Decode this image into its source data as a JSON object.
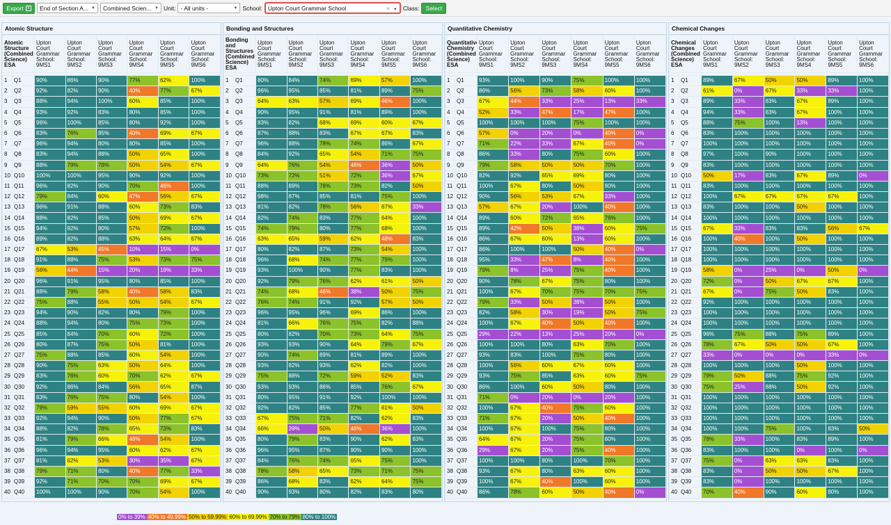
{
  "toolbar": {
    "export_label": "Export",
    "select1": "End of Section A...",
    "select2": "Combined Scien...",
    "unit_label": "Unit:",
    "unit_value": "- All units -",
    "school_label": "School:",
    "school_value": "Upton Court Grammar School",
    "class_label": "Class:",
    "select_button": "Select"
  },
  "colors": {
    "0-39": "#a44fd1",
    "40-49.99": "#f07828",
    "50-59.99": "#f2d200",
    "60-69.99": "#f7f20a",
    "70-79": "#8cc22a",
    "80-100": "#2e8283"
  },
  "legend": [
    "0% to 39%",
    "40% to 49.99%",
    "50% to 59.99%",
    "60% to 69.99%",
    "70% to 79%",
    "80% to 100%"
  ],
  "panels": [
    {
      "title": "Atomic Structure",
      "first_header": "Atomic Structure (Combined Science) ESA",
      "class_headers": [
        "Upton Court Grammar School: 9MS1",
        "Upton Court Grammar School: 9MS2",
        "Upton Court Grammar School: 9MS3",
        "Upton Court Grammar School: 9MS4",
        "Upton Court Grammar School: 9MS5",
        "Upton Court Grammar School: 9MS6"
      ],
      "rows": [
        [
          90,
          86,
          90,
          77,
          62,
          100
        ],
        [
          92,
          82,
          90,
          40,
          77,
          67
        ],
        [
          88,
          94,
          100,
          60,
          85,
          100
        ],
        [
          93,
          92,
          83,
          80,
          85,
          100
        ],
        [
          96,
          100,
          85,
          80,
          92,
          100
        ],
        [
          83,
          76,
          85,
          40,
          69,
          67
        ],
        [
          96,
          94,
          80,
          80,
          85,
          100
        ],
        [
          83,
          94,
          88,
          50,
          65,
          100
        ],
        [
          88,
          79,
          78,
          50,
          54,
          67
        ],
        [
          100,
          100,
          95,
          90,
          92,
          100
        ],
        [
          96,
          82,
          90,
          70,
          46,
          100
        ],
        [
          79,
          84,
          60,
          47,
          56,
          67
        ],
        [
          96,
          91,
          88,
          60,
          73,
          83
        ],
        [
          88,
          82,
          85,
          50,
          69,
          67
        ],
        [
          94,
          92,
          80,
          57,
          72,
          100
        ],
        [
          89,
          82,
          88,
          63,
          64,
          67
        ],
        [
          67,
          53,
          45,
          10,
          15,
          0
        ],
        [
          91,
          88,
          75,
          53,
          73,
          75
        ],
        [
          56,
          44,
          15,
          20,
          19,
          33
        ],
        [
          96,
          91,
          95,
          80,
          85,
          100
        ],
        [
          88,
          79,
          58,
          40,
          58,
          83
        ],
        [
          75,
          88,
          55,
          50,
          54,
          67
        ],
        [
          94,
          90,
          82,
          80,
          79,
          100
        ],
        [
          88,
          94,
          80,
          75,
          73,
          100
        ],
        [
          85,
          84,
          70,
          60,
          72,
          100
        ],
        [
          80,
          87,
          75,
          50,
          81,
          100
        ],
        [
          75,
          88,
          85,
          60,
          54,
          100
        ],
        [
          90,
          75,
          63,
          50,
          64,
          100
        ],
        [
          83,
          76,
          60,
          70,
          62,
          67
        ],
        [
          92,
          86,
          84,
          56,
          65,
          87
        ],
        [
          83,
          76,
          75,
          80,
          54,
          100
        ],
        [
          79,
          59,
          55,
          60,
          69,
          67
        ],
        [
          92,
          94,
          90,
          50,
          77,
          67
        ],
        [
          88,
          82,
          78,
          65,
          73,
          83
        ],
        [
          81,
          79,
          66,
          48,
          54,
          100
        ],
        [
          96,
          94,
          95,
          60,
          62,
          67
        ],
        [
          81,
          62,
          53,
          30,
          35,
          67
        ],
        [
          79,
          71,
          80,
          40,
          77,
          33
        ],
        [
          92,
          71,
          70,
          70,
          69,
          67
        ],
        [
          100,
          100,
          90,
          70,
          54,
          100
        ]
      ]
    },
    {
      "title": "Bonding and Structures",
      "first_header": "Bonding and Structures (Combined Science) ESA",
      "class_headers": [
        "Upton Court Grammar School: 9MS1",
        "Upton Court Grammar School: 9MS2",
        "Upton Court Grammar School: 9MS3",
        "Upton Court Grammar School: 9MS4",
        "Upton Court Grammar School: 9MS5",
        "Upton Court Grammar School: 9MS6"
      ],
      "rows": [
        [
          80,
          84,
          74,
          69,
          57,
          100
        ],
        [
          96,
          95,
          85,
          81,
          89,
          75
        ],
        [
          64,
          63,
          57,
          69,
          46,
          100
        ],
        [
          90,
          95,
          91,
          81,
          89,
          100
        ],
        [
          83,
          82,
          68,
          69,
          60,
          67
        ],
        [
          87,
          88,
          83,
          67,
          67,
          83
        ],
        [
          96,
          88,
          78,
          74,
          86,
          67
        ],
        [
          84,
          92,
          65,
          54,
          71,
          75
        ],
        [
          64,
          76,
          54,
          46,
          36,
          50
        ],
        [
          73,
          72,
          51,
          72,
          36,
          67
        ],
        [
          88,
          89,
          78,
          73,
          82,
          50
        ],
        [
          98,
          87,
          85,
          81,
          75,
          100
        ],
        [
          81,
          82,
          78,
          56,
          67,
          33
        ],
        [
          82,
          74,
          83,
          77,
          64,
          100
        ],
        [
          74,
          79,
          80,
          77,
          68,
          100
        ],
        [
          63,
          65,
          59,
          62,
          48,
          83
        ],
        [
          80,
          82,
          87,
          73,
          54,
          100
        ],
        [
          96,
          68,
          74,
          77,
          79,
          100
        ],
        [
          93,
          100,
          90,
          77,
          83,
          100
        ],
        [
          92,
          79,
          76,
          62,
          61,
          50
        ],
        [
          74,
          68,
          46,
          38,
          50,
          75
        ],
        [
          76,
          74,
          91,
          92,
          57,
          50
        ],
        [
          96,
          95,
          96,
          69,
          86,
          100
        ],
        [
          81,
          66,
          76,
          75,
          82,
          88
        ],
        [
          80,
          82,
          70,
          73,
          64,
          75
        ],
        [
          93,
          93,
          90,
          64,
          79,
          67
        ],
        [
          90,
          74,
          89,
          81,
          89,
          100
        ],
        [
          93,
          82,
          93,
          62,
          82,
          100
        ],
        [
          75,
          88,
          72,
          59,
          52,
          83
        ],
        [
          93,
          93,
          86,
          85,
          76,
          67
        ],
        [
          80,
          95,
          91,
          92,
          100,
          100
        ],
        [
          92,
          82,
          85,
          77,
          61,
          50
        ],
        [
          67,
          75,
          71,
          82,
          62,
          83
        ],
        [
          66,
          39,
          50,
          46,
          36,
          100
        ],
        [
          80,
          79,
          83,
          90,
          62,
          83
        ],
        [
          96,
          95,
          87,
          90,
          90,
          100
        ],
        [
          84,
          76,
          74,
          65,
          75,
          100
        ],
        [
          78,
          58,
          65,
          73,
          71,
          75
        ],
        [
          86,
          68,
          83,
          62,
          64,
          75
        ],
        [
          90,
          93,
          80,
          82,
          83,
          80
        ]
      ]
    },
    {
      "title": "Quantitative Chemistry",
      "first_header": "Quantitative Chemistry (Combined Science) ESA",
      "class_headers": [
        "Upton Court Grammar School: 9MS1",
        "Upton Court Grammar School: 9MS2",
        "Upton Court Grammar School: 9MS3",
        "Upton Court Grammar School: 9MS4",
        "Upton Court Grammar School: 9MS5",
        "Upton Court Grammar School: 9MS6"
      ],
      "rows": [
        [
          93,
          100,
          90,
          75,
          100,
          100
        ],
        [
          86,
          56,
          73,
          58,
          60,
          100
        ],
        [
          67,
          44,
          33,
          25,
          13,
          33
        ],
        [
          52,
          33,
          47,
          17,
          47,
          100
        ],
        [
          100,
          100,
          100,
          75,
          100,
          100
        ],
        [
          57,
          0,
          20,
          0,
          40,
          0
        ],
        [
          71,
          22,
          33,
          67,
          40,
          0
        ],
        [
          86,
          33,
          80,
          75,
          60,
          100
        ],
        [
          79,
          58,
          50,
          50,
          70,
          100
        ],
        [
          82,
          92,
          65,
          69,
          80,
          100
        ],
        [
          100,
          67,
          80,
          50,
          80,
          100
        ],
        [
          90,
          56,
          53,
          67,
          33,
          100
        ],
        [
          57,
          67,
          20,
          100,
          40,
          100
        ],
        [
          89,
          60,
          72,
          65,
          76,
          100
        ],
        [
          89,
          42,
          50,
          38,
          60,
          75
        ],
        [
          86,
          67,
          60,
          13,
          60,
          100
        ],
        [
          86,
          100,
          100,
          50,
          40,
          0
        ],
        [
          95,
          33,
          47,
          8,
          40,
          100
        ],
        [
          79,
          8,
          25,
          75,
          40,
          100
        ],
        [
          90,
          78,
          67,
          75,
          80,
          100
        ],
        [
          100,
          67,
          70,
          75,
          70,
          75
        ],
        [
          79,
          33,
          50,
          38,
          50,
          100
        ],
        [
          82,
          58,
          30,
          19,
          50,
          75
        ],
        [
          100,
          67,
          40,
          50,
          40,
          100
        ],
        [
          29,
          22,
          13,
          25,
          20,
          0
        ],
        [
          100,
          100,
          80,
          63,
          70,
          100
        ],
        [
          93,
          83,
          100,
          75,
          80,
          100
        ],
        [
          100,
          56,
          60,
          67,
          60,
          100
        ],
        [
          93,
          75,
          85,
          63,
          60,
          75
        ],
        [
          86,
          100,
          60,
          50,
          80,
          100
        ],
        [
          71,
          0,
          20,
          0,
          20,
          100
        ],
        [
          100,
          67,
          40,
          75,
          60,
          100
        ],
        [
          71,
          67,
          20,
          50,
          40,
          100
        ],
        [
          100,
          67,
          100,
          75,
          80,
          100
        ],
        [
          64,
          67,
          20,
          75,
          80,
          100
        ],
        [
          29,
          67,
          20,
          75,
          40,
          100
        ],
        [
          100,
          100,
          80,
          100,
          70,
          100
        ],
        [
          93,
          67,
          80,
          63,
          60,
          100
        ],
        [
          100,
          67,
          40,
          100,
          60,
          100
        ],
        [
          86,
          78,
          60,
          50,
          40,
          0
        ]
      ]
    },
    {
      "title": "Chemical Changes",
      "first_header": "Chemical Changes (Combined Science) ESA",
      "class_headers": [
        "Upton Court Grammar School: 9MS1",
        "Upton Court Grammar School: 9MS2",
        "Upton Court Grammar School: 9MS3",
        "Upton Court Grammar School: 9MS4",
        "Upton Court Grammar School: 9MS5",
        "Upton Court Grammar School: 9MS6"
      ],
      "rows": [
        [
          89,
          67,
          50,
          50,
          89,
          100
        ],
        [
          61,
          0,
          67,
          33,
          33,
          100
        ],
        [
          89,
          33,
          83,
          67,
          89,
          100
        ],
        [
          94,
          33,
          83,
          67,
          100,
          100
        ],
        [
          88,
          75,
          100,
          13,
          100,
          100
        ],
        [
          83,
          100,
          100,
          100,
          100,
          100
        ],
        [
          100,
          100,
          100,
          100,
          100,
          100
        ],
        [
          97,
          100,
          90,
          100,
          100,
          100
        ],
        [
          83,
          100,
          100,
          100,
          100,
          100
        ],
        [
          50,
          17,
          83,
          67,
          89,
          0
        ],
        [
          83,
          100,
          100,
          100,
          100,
          100
        ],
        [
          100,
          67,
          67,
          67,
          67,
          100
        ],
        [
          83,
          100,
          100,
          50,
          100,
          100
        ],
        [
          100,
          100,
          100,
          100,
          100,
          100
        ],
        [
          67,
          33,
          83,
          83,
          56,
          67
        ],
        [
          100,
          40,
          100,
          50,
          100,
          100
        ],
        [
          100,
          100,
          100,
          100,
          100,
          100
        ],
        [
          100,
          100,
          100,
          100,
          100,
          100
        ],
        [
          58,
          0,
          25,
          0,
          50,
          0
        ],
        [
          72,
          0,
          50,
          67,
          67,
          100
        ],
        [
          67,
          0,
          75,
          50,
          83,
          100
        ],
        [
          92,
          100,
          100,
          100,
          100,
          100
        ],
        [
          100,
          100,
          100,
          100,
          100,
          100
        ],
        [
          100,
          100,
          100,
          100,
          100,
          100
        ],
        [
          96,
          75,
          88,
          75,
          89,
          100
        ],
        [
          78,
          67,
          50,
          50,
          67,
          100
        ],
        [
          33,
          0,
          0,
          0,
          33,
          0
        ],
        [
          100,
          100,
          100,
          50,
          100,
          100
        ],
        [
          79,
          50,
          88,
          75,
          92,
          100
        ],
        [
          75,
          25,
          88,
          50,
          92,
          100
        ],
        [
          100,
          100,
          100,
          100,
          100,
          100
        ],
        [
          100,
          100,
          100,
          100,
          100,
          100
        ],
        [
          100,
          100,
          100,
          100,
          100,
          100
        ],
        [
          100,
          100,
          75,
          100,
          83,
          50
        ],
        [
          78,
          33,
          100,
          83,
          89,
          100
        ],
        [
          83,
          100,
          100,
          0,
          100,
          0
        ],
        [
          75,
          0,
          63,
          63,
          83,
          100
        ],
        [
          83,
          0,
          50,
          50,
          67,
          100
        ],
        [
          83,
          0,
          100,
          100,
          100,
          100
        ],
        [
          70,
          40,
          90,
          60,
          80,
          100
        ]
      ]
    }
  ]
}
